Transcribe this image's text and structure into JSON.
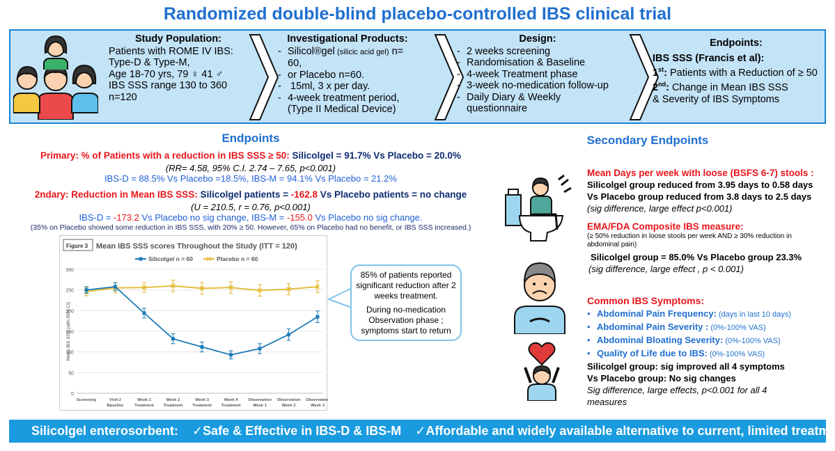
{
  "title": "Randomized double-blind placebo-controlled IBS clinical trial",
  "banner": {
    "population": {
      "heading": "Study Population:",
      "l1": "Patients with ROME IV IBS:",
      "l2": "Type-D & Type-M,",
      "l3": "Age 18-70 yrs,   79 ♀   41 ♂",
      "l4": "IBS SSS range 130 to 360",
      "l5": "n=120"
    },
    "products": {
      "heading": "Investigational Products:",
      "i1a": "Silicol®gel",
      "i1b": " (silicic acid gel)",
      "i1c": " n= 60,",
      "i2": "or  Placebo  n=60.",
      "i3": " 15ml, 3 x per day.",
      "i4": "4-week treatment period, (Type II Medical Device)"
    },
    "design": {
      "heading": "Design:",
      "items": [
        "2 weeks screening",
        "Randomisation & Baseline",
        "4-week Treatment phase",
        "3-week no-medication follow-up",
        "Daily Diary & Weekly questionnaire"
      ]
    },
    "endpoints": {
      "heading": "Endpoints:",
      "l1": "IBS SSS (Francis et al):",
      "first_label": "1",
      "first_sup": "st",
      "first_text": "Patients with a Reduction of ≥ 50",
      "second_label": "2",
      "second_sup": "nd",
      "second_text": "Change in Mean IBS SSS",
      "second_text2": "&  Severity of IBS Symptoms"
    }
  },
  "endpoints": {
    "title": "Endpoints",
    "primary_label": "Primary:  % of Patients with a reduction in IBS SSS ≥ 50:",
    "primary_result": " Silicolgel = 91.7% Vs Placebo = 20.0%",
    "primary_stats": "(RR= 4.58, 95% C.I. 2.74 – 7.65, p<0.001)",
    "primary_sub": "IBS-D = 88.5%  Vs Placebo =18.5%, IBS-M = 94.1% Vs Placebo = 21.2%",
    "secondary_label": "2ndary:  Reduction in Mean IBS SSS:",
    "secondary_result_a": "  Silicolgel patients = ",
    "secondary_result_b": "-162.8",
    "secondary_result_c": "  Vs Placebo patients = no change",
    "secondary_stats": "(U = 210.5, r = 0.76, p<0.001)",
    "secondary_sub_a": "IBS-D = ",
    "secondary_sub_b": "-173.2",
    "secondary_sub_c": " Vs Placebo no sig change, IBS-M = ",
    "secondary_sub_d": "-155.0",
    "secondary_sub_e": " Vs Placebo no sig change.",
    "note": "(35%  on Placebo showed some reduction in IBS SSS, with 20% ≥ 50.  However, 65% on Placebo had no benefit, or IBS SSS increased.)"
  },
  "chart_data": {
    "type": "line",
    "figure_label": "Figure 3",
    "title": "Mean IBS SSS scores  Throughout the Study (ITT = 120)",
    "ylabel": "Mean IBS SSS (with 95% CI)",
    "xlabel": "",
    "ylim": [
      0,
      300
    ],
    "yticks": [
      0,
      50,
      100,
      150,
      200,
      250,
      300
    ],
    "categories": [
      {
        "l1": "Screening",
        "l2": ""
      },
      {
        "l1": "Visit 2",
        "l2": "Baseline"
      },
      {
        "l1": "Week 1",
        "l2": "Treatment"
      },
      {
        "l1": "Week 2",
        "l2": "Treatment"
      },
      {
        "l1": "Week 3",
        "l2": "Treatment"
      },
      {
        "l1": "Week 4",
        "l2": "Treatment"
      },
      {
        "l1": "Observation",
        "l2": "Week 1"
      },
      {
        "l1": "Observation",
        "l2": "Week 2"
      },
      {
        "l1": "Observation",
        "l2": "Week 3"
      }
    ],
    "series": [
      {
        "name": "Silicolgel  n = 60",
        "color": "#1c7ab8",
        "values": [
          250,
          258,
          194,
          132,
          112,
          93,
          108,
          142,
          185
        ],
        "ci": [
          8,
          10,
          12,
          12,
          12,
          10,
          12,
          14,
          14
        ]
      },
      {
        "name": "Placebo  n = 60",
        "color": "#e3b82c",
        "values": [
          246,
          255,
          256,
          260,
          254,
          256,
          249,
          252,
          258
        ],
        "ci": [
          10,
          12,
          12,
          14,
          14,
          14,
          14,
          14,
          14
        ]
      }
    ]
  },
  "callout": {
    "p1": "85% of patients reported significant reduction after 2 weeks treatment.",
    "p2": "During  no-medication Observation phase ; symptoms start to return"
  },
  "secondary": {
    "title": "Secondary Endpoints",
    "loose_title": "Mean Days per week with loose (BSFS 6-7) stools :",
    "loose_l1": "Silicolgel group reduced from 3.95 days to 0.58 days",
    "loose_l2": "Vs Placebo group reduced from 3.8 days to 2.5 days",
    "loose_l3": "(sig difference, large effect p<0.001)",
    "ema_title": "EMA/FDA Composite IBS measure:",
    "ema_sub1": "(≥ 50% reduction in loose stools per week AND ≥ 30% reduction in",
    "ema_sub2": "abdominal pain)",
    "ema_result": "Silicolgel group = 85.0% Vs Placebo group 23.3%",
    "ema_stats": "(sig difference, large effect ,  p < 0.001)",
    "sym_title": "Common IBS Symptoms:",
    "symptoms": [
      {
        "name": "Abdominal Pain Frequency:",
        "detail": " (days in last 10 days)"
      },
      {
        "name": "Abdominal Pain Severity :",
        "detail": " (0%-100% VAS)"
      },
      {
        "name": "Abdominal Bloating Severity:",
        "detail": " (0%-100% VAS)"
      },
      {
        "name": "Quality of Life due to IBS:",
        "detail": " (0%-100% VAS)"
      }
    ],
    "sym_l1": "Silicolgel group: sig improved all 4 symptoms",
    "sym_l2": "Vs Placebo group: No sig changes",
    "sym_l3": "Sig difference, large effects, p<0.001 for  all  4",
    "sym_l4": "measures"
  },
  "footer": {
    "a": "Silicolgel enterosorbent:",
    "b": "✓Safe & Effective in IBS-D & IBS-M",
    "c": "✓Affordable and widely available alternative to current, limited treatments"
  }
}
